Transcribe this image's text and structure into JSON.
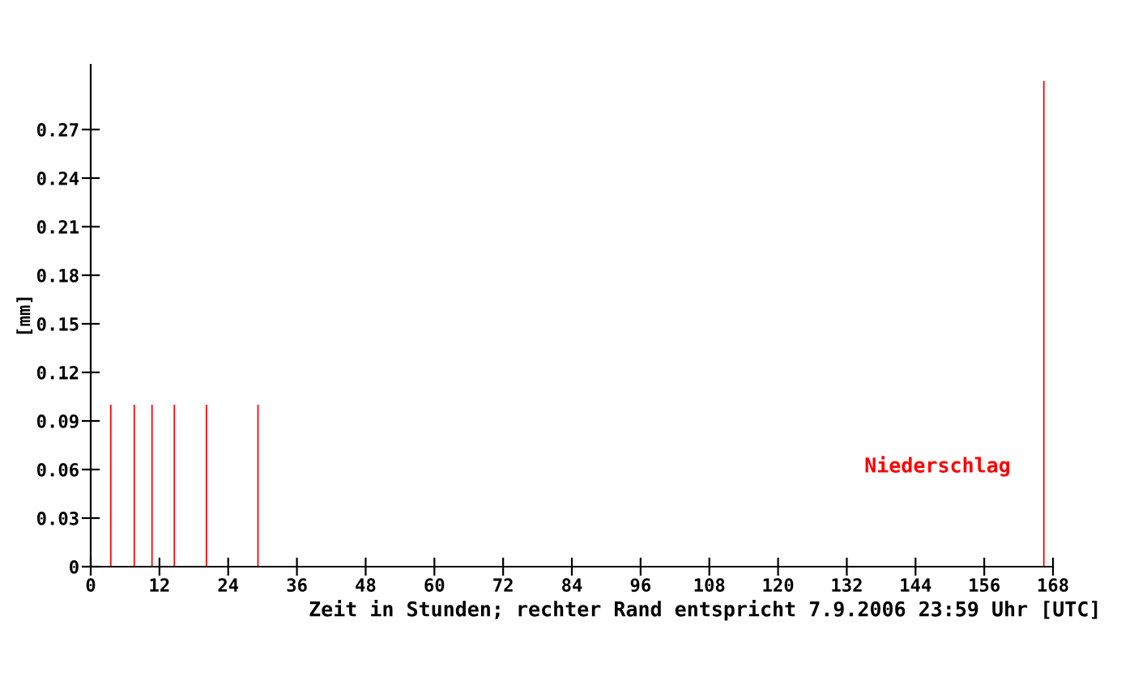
{
  "chart_data": {
    "type": "bar",
    "xlabel": "Zeit in Stunden; rechter Rand entspricht 7.9.2006 23:59 Uhr [UTC]",
    "ylabel": "[mm]",
    "series": [
      {
        "name": "Niederschlag",
        "color": "#ff0000",
        "x": [
          3.5,
          7.6,
          10.7,
          14.6,
          20.2,
          29.2,
          166.4
        ],
        "values": [
          0.1,
          0.1,
          0.1,
          0.1,
          0.1,
          0.1,
          0.3
        ]
      }
    ],
    "xlim": [
      0,
      168
    ],
    "xticks": [
      0,
      12,
      24,
      36,
      48,
      60,
      72,
      84,
      96,
      108,
      120,
      132,
      144,
      156,
      168
    ],
    "ylim": [
      0,
      0.31
    ],
    "yticks": [
      "0",
      0.03,
      0.06,
      0.09,
      0.12,
      0.15,
      0.18,
      0.21,
      0.24,
      0.27
    ],
    "grid": false,
    "legend": false
  }
}
